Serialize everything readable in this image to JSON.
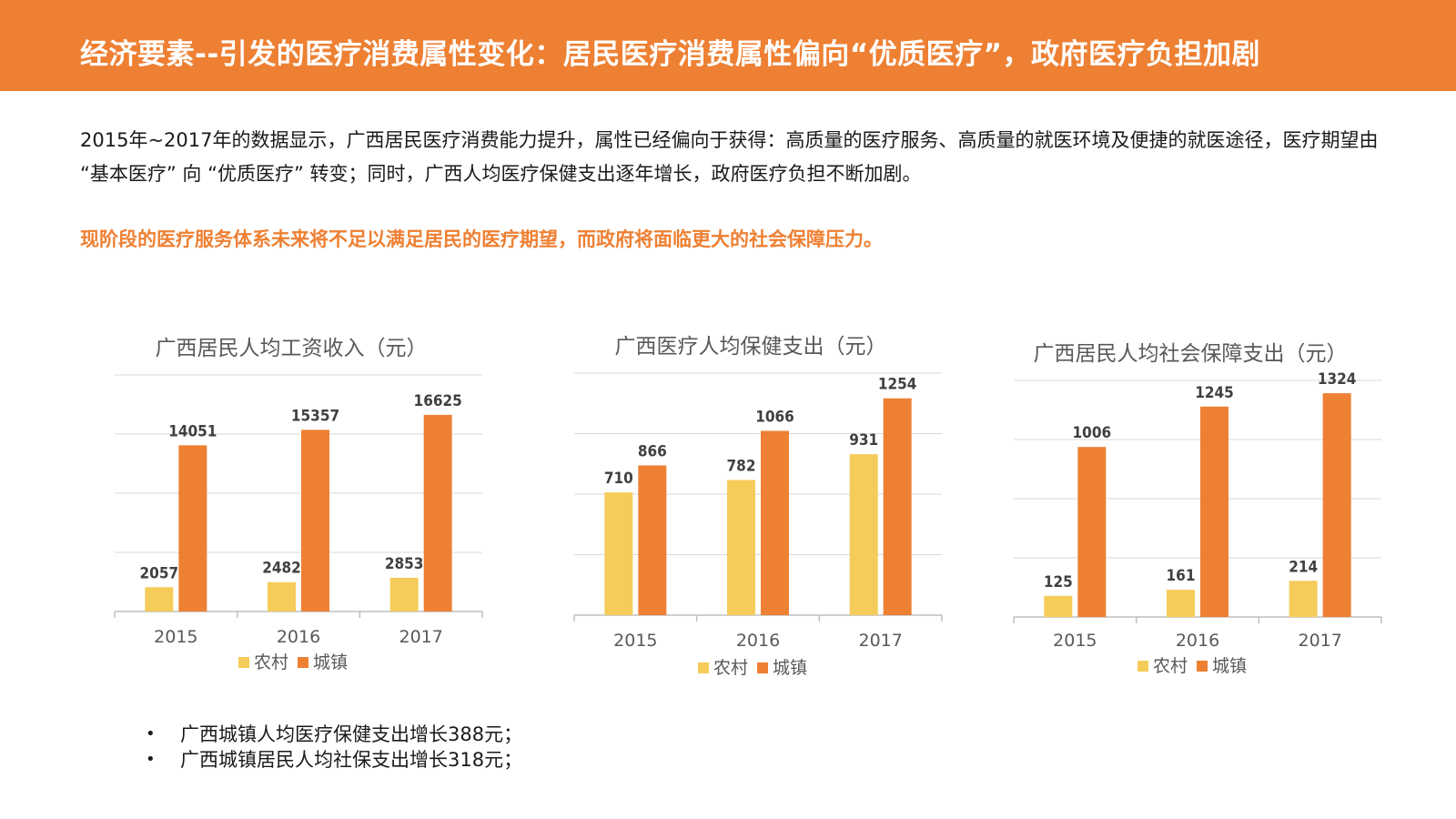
{
  "header": {
    "title": "经济要素--引发的医疗消费属性变化：居民医疗消费属性偏向“优质医疗”，政府医疗负担加剧"
  },
  "intro": {
    "text": "2015年~2017年的数据显示，广西居民医疗消费能力提升，属性已经偏向于获得：高质量的医疗服务、高质量的就医环境及便捷的就医途径，医疗期望由 “基本医疗” 向 “优质医疗” 转变；同时，广西人均医疗保健支出逐年增长，政府医疗负担不断加剧。"
  },
  "highlight": {
    "text": "现阶段的医疗服务体系未来将不足以满足居民的医疗期望，而政府将面临更大的社会保障压力。"
  },
  "colors": {
    "rural": "#f5cc5a",
    "urban": "#ee8033",
    "grid": "#d9d9d9",
    "axis": "#bfbfbf"
  },
  "chart_data": [
    {
      "type": "bar",
      "title": "广西居民人均工资收入（元）",
      "categories": [
        "2015",
        "2016",
        "2017"
      ],
      "series": [
        {
          "name": "农村",
          "values": [
            2057,
            2482,
            2853
          ]
        },
        {
          "name": "城镇",
          "values": [
            14051,
            15357,
            16625
          ]
        }
      ],
      "ylim": [
        0,
        20000
      ],
      "grid": true,
      "legend": "bottom"
    },
    {
      "type": "bar",
      "title": "广西医疗人均保健支出（元）",
      "categories": [
        "2015",
        "2016",
        "2017"
      ],
      "series": [
        {
          "name": "农村",
          "values": [
            710,
            782,
            931
          ]
        },
        {
          "name": "城镇",
          "values": [
            866,
            1066,
            1254
          ]
        }
      ],
      "ylim": [
        0,
        1400
      ],
      "grid": true,
      "legend": "bottom"
    },
    {
      "type": "bar",
      "title": "广西居民人均社会保障支出（元）",
      "categories": [
        "2015",
        "2016",
        "2017"
      ],
      "series": [
        {
          "name": "农村",
          "values": [
            125,
            161,
            214
          ]
        },
        {
          "name": "城镇",
          "values": [
            1006,
            1245,
            1324
          ]
        }
      ],
      "ylim": [
        0,
        1400
      ],
      "grid": true,
      "legend": "bottom"
    }
  ],
  "notes": [
    "广西城镇人均医疗保健支出增长388元；",
    "广西城镇居民人均社保支出增长318元；"
  ]
}
